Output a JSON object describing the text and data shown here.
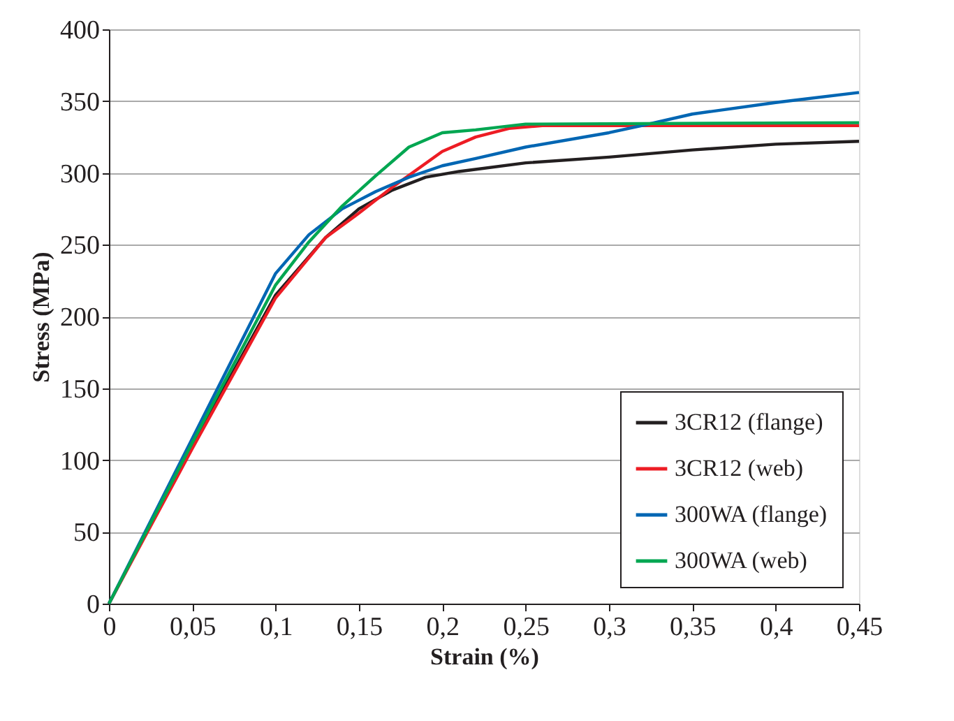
{
  "chart_data": {
    "type": "line",
    "xlabel": "Strain (%)",
    "ylabel": "Stress (MPa)",
    "xlim": [
      0,
      0.45
    ],
    "ylim": [
      0,
      400
    ],
    "xticks": [
      0,
      {
        "value": 0.05,
        "label": "0,05"
      },
      {
        "value": 0.1,
        "label": "0,1"
      },
      {
        "value": 0.15,
        "label": "0,15"
      },
      {
        "value": 0.2,
        "label": "0,2"
      },
      {
        "value": 0.25,
        "label": "0,25"
      },
      {
        "value": 0.3,
        "label": "0,3"
      },
      {
        "value": 0.35,
        "label": "0,35"
      },
      {
        "value": 0.4,
        "label": "0,4"
      },
      {
        "value": 0.45,
        "label": "0,45"
      }
    ],
    "yticks": [
      0,
      50,
      100,
      150,
      200,
      250,
      300,
      350,
      400
    ],
    "grid": "y",
    "legend": "bottom right",
    "marker": "none",
    "line_style": "solid",
    "series": [
      {
        "name": "3CR12 (flange)",
        "color": "#231f20",
        "x": [
          0,
          0.05,
          0.1,
          0.13,
          0.15,
          0.17,
          0.19,
          0.21,
          0.25,
          0.3,
          0.35,
          0.4,
          0.45
        ],
        "values": [
          0,
          110,
          215,
          255,
          275,
          288,
          297,
          301,
          307,
          311,
          316,
          320,
          322
        ]
      },
      {
        "name": "3CR12 (web)",
        "color": "#ed1c24",
        "x": [
          0,
          0.05,
          0.1,
          0.13,
          0.15,
          0.17,
          0.2,
          0.22,
          0.24,
          0.26,
          0.3,
          0.45
        ],
        "values": [
          0,
          108,
          213,
          255,
          272,
          290,
          315,
          325,
          331,
          333,
          333,
          333
        ]
      },
      {
        "name": "300WA (flange)",
        "color": "#0066b3",
        "x": [
          0,
          0.05,
          0.1,
          0.12,
          0.14,
          0.16,
          0.18,
          0.2,
          0.22,
          0.25,
          0.3,
          0.32,
          0.35,
          0.4,
          0.45
        ],
        "values": [
          0,
          115,
          230,
          257,
          275,
          287,
          297,
          305,
          310,
          318,
          328,
          333,
          341,
          349,
          356
        ]
      },
      {
        "name": "300WA (web)",
        "color": "#00a651",
        "x": [
          0,
          0.05,
          0.1,
          0.12,
          0.14,
          0.16,
          0.18,
          0.2,
          0.22,
          0.25,
          0.45
        ],
        "values": [
          0,
          112,
          222,
          252,
          277,
          298,
          318,
          328,
          330,
          334,
          335
        ]
      }
    ]
  }
}
